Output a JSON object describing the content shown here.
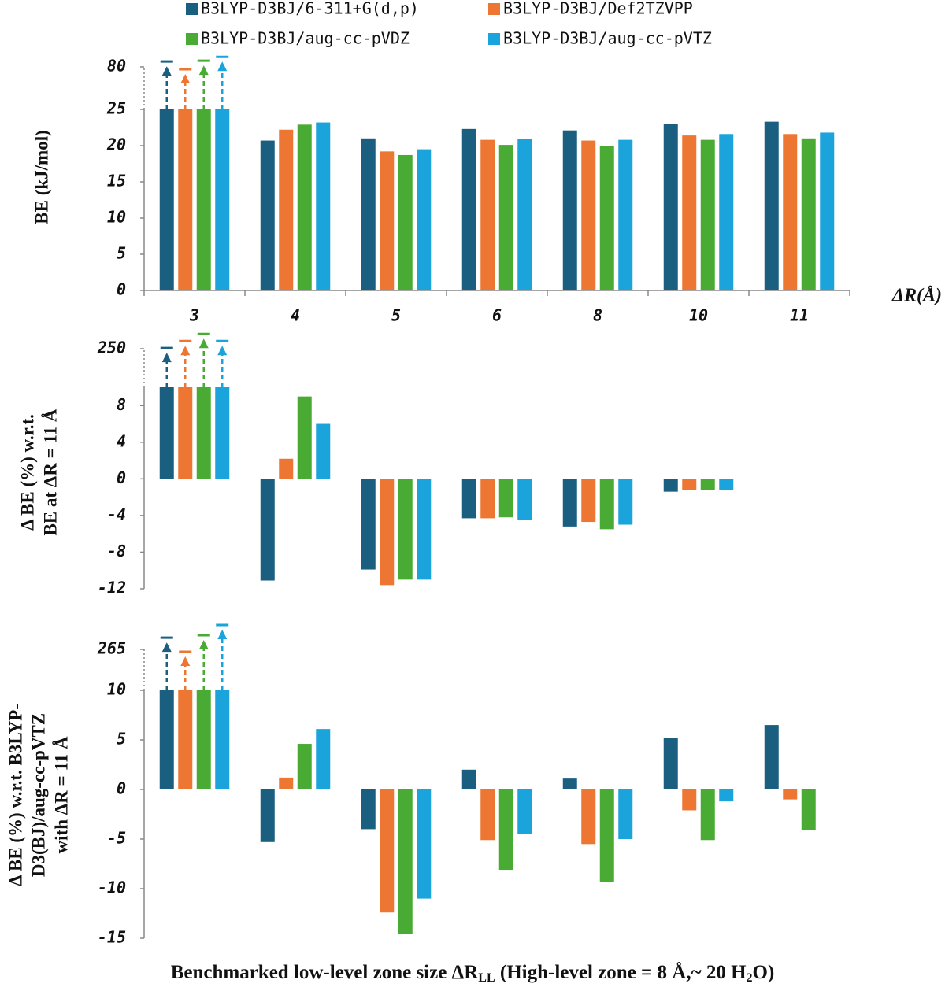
{
  "chart_data": [
    {
      "type": "bar",
      "xlabel": "ΔR(Å)",
      "ylabel": [
        "BE (kJ/mol)"
      ],
      "categories": [
        "3",
        "4",
        "5",
        "6",
        "8",
        "10",
        "11"
      ],
      "ylim": [
        0,
        80
      ],
      "axis_break": 25,
      "yticks": [
        0,
        5,
        10,
        15,
        20,
        25,
        80
      ],
      "series": [
        {
          "name": "B3LYP-D3BJ/6-311+G(d,p)",
          "color": "#1a5e80",
          "values": [
            87,
            20.7,
            21.0,
            22.3,
            22.1,
            23.0,
            23.3
          ]
        },
        {
          "name": "B3LYP-D3BJ/Def2TZVPP",
          "color": "#ed7632",
          "values": [
            77,
            22.2,
            19.2,
            20.8,
            20.7,
            21.4,
            21.6
          ]
        },
        {
          "name": "B3LYP-D3BJ/aug-cc-pVDZ",
          "color": "#4aab34",
          "values": [
            88,
            22.9,
            18.7,
            20.1,
            19.9,
            20.8,
            21.0
          ]
        },
        {
          "name": "B3LYP-D3BJ/aug-cc-pVTZ",
          "color": "#1ba3dc",
          "values": [
            93,
            23.2,
            19.5,
            20.9,
            20.8,
            21.6,
            21.8
          ]
        }
      ]
    },
    {
      "type": "bar",
      "ylabel": [
        "Δ BE (%) w.r.t.",
        "BE at ΔR = 11 Å"
      ],
      "ylim": [
        -12,
        250
      ],
      "axis_break": 10,
      "yticks": [
        -12,
        -8,
        -4,
        0,
        4,
        8,
        250
      ],
      "series": [
        {
          "color": "#1a5e80",
          "values": [
            254,
            -11.1,
            -9.9,
            -4.3,
            -5.2,
            -1.4,
            0
          ]
        },
        {
          "color": "#ed7632",
          "values": [
            298,
            2.2,
            -11.6,
            -4.3,
            -4.7,
            -1.2,
            0
          ]
        },
        {
          "color": "#4aab34",
          "values": [
            342,
            9.0,
            -11.0,
            -4.2,
            -5.5,
            -1.2,
            0
          ]
        },
        {
          "color": "#1ba3dc",
          "values": [
            298,
            6.0,
            -11.0,
            -4.5,
            -5.0,
            -1.2,
            0
          ]
        }
      ]
    },
    {
      "type": "bar",
      "ylabel": [
        "Δ BE (%) w.r.t. B3LYP-",
        "D3(BJ)/aug-cc-pVTZ",
        "with ΔR = 11 Å"
      ],
      "ylim": [
        -15,
        265
      ],
      "axis_break": 10,
      "yticks": [
        -15,
        -10,
        -5,
        0,
        5,
        10,
        265
      ],
      "series": [
        {
          "color": "#1a5e80",
          "values": [
            338,
            -5.3,
            -4.0,
            2.0,
            1.1,
            5.2,
            6.5
          ]
        },
        {
          "color": "#ed7632",
          "values": [
            250,
            1.2,
            -12.4,
            -5.1,
            -5.5,
            -2.1,
            -1.0
          ]
        },
        {
          "color": "#4aab34",
          "values": [
            353,
            4.6,
            -14.6,
            -8.1,
            -9.3,
            -5.1,
            -4.1
          ]
        },
        {
          "color": "#1ba3dc",
          "values": [
            417,
            6.1,
            -11.0,
            -4.5,
            -5.0,
            -1.2,
            0
          ]
        }
      ]
    }
  ],
  "caption": [
    "Benchmarked low-level zone size ΔR",
    "LL",
    " (High-level zone = 8 Å,~ 20 H",
    "2",
    "O)"
  ]
}
